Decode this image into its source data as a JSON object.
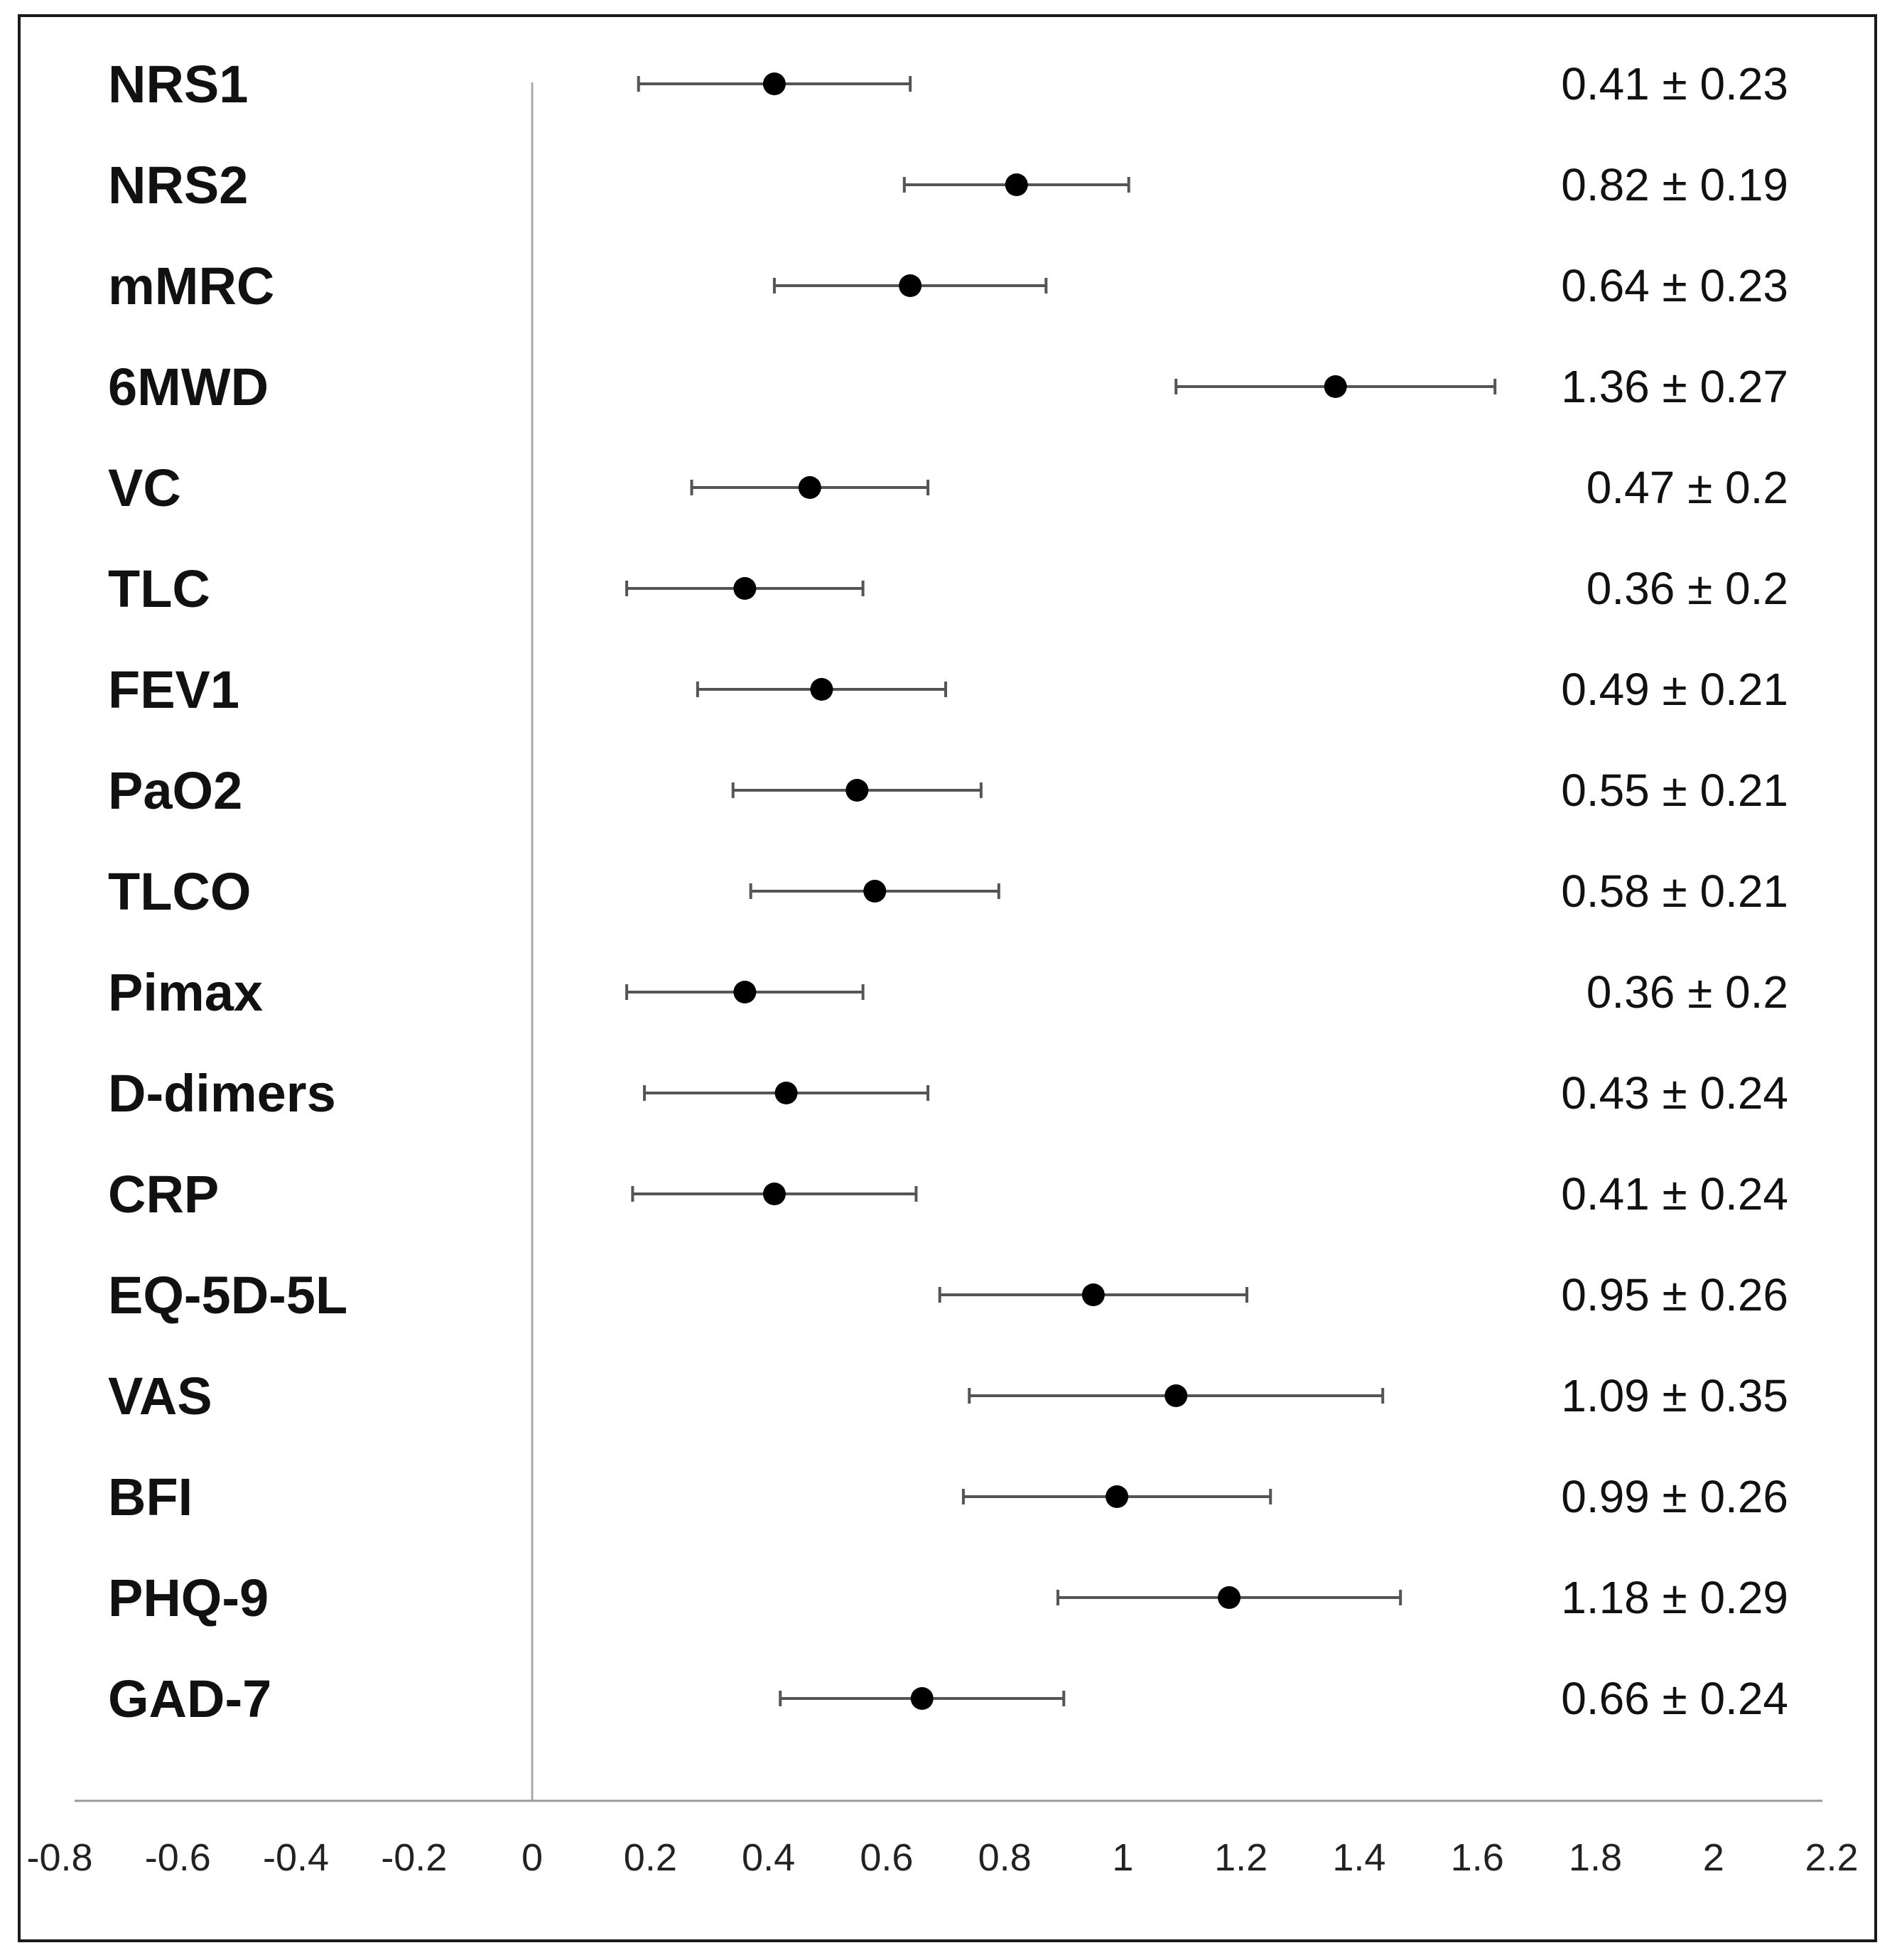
{
  "chart_data": {
    "type": "forest",
    "xlim": [
      -0.8,
      2.2
    ],
    "xticks": [
      "-0.8",
      "-0.6",
      "-0.4",
      "-0.2",
      "0",
      "0.2",
      "0.4",
      "0.6",
      "0.8",
      "1",
      "1.2",
      "1.4",
      "1.6",
      "1.8",
      "2",
      "2.2"
    ],
    "reference_line": 0,
    "colors": {
      "point": "#000000",
      "whisker": "#555555",
      "axis": "#999999",
      "reference": "#aaaaaa"
    },
    "rows": [
      {
        "label": "NRS1",
        "mean": 0.41,
        "ci": 0.23,
        "text": "0.41 ± 0.23"
      },
      {
        "label": "NRS2",
        "mean": 0.82,
        "ci": 0.19,
        "text": "0.82 ± 0.19"
      },
      {
        "label": "mMRC",
        "mean": 0.64,
        "ci": 0.23,
        "text": "0.64 ± 0.23"
      },
      {
        "label": "6MWD",
        "mean": 1.36,
        "ci": 0.27,
        "text": "1.36 ± 0.27"
      },
      {
        "label": "VC",
        "mean": 0.47,
        "ci": 0.2,
        "text": "0.47 ± 0.2"
      },
      {
        "label": "TLC",
        "mean": 0.36,
        "ci": 0.2,
        "text": "0.36 ± 0.2"
      },
      {
        "label": "FEV1",
        "mean": 0.49,
        "ci": 0.21,
        "text": "0.49 ± 0.21"
      },
      {
        "label": "PaO2",
        "mean": 0.55,
        "ci": 0.21,
        "text": "0.55 ± 0.21"
      },
      {
        "label": "TLCO",
        "mean": 0.58,
        "ci": 0.21,
        "text": "0.58 ± 0.21"
      },
      {
        "label": "Pimax",
        "mean": 0.36,
        "ci": 0.2,
        "text": "0.36 ± 0.2"
      },
      {
        "label": "D-dimers",
        "mean": 0.43,
        "ci": 0.24,
        "text": "0.43 ± 0.24"
      },
      {
        "label": "CRP",
        "mean": 0.41,
        "ci": 0.24,
        "text": "0.41 ± 0.24"
      },
      {
        "label": "EQ-5D-5L",
        "mean": 0.95,
        "ci": 0.26,
        "text": "0.95 ± 0.26"
      },
      {
        "label": "VAS",
        "mean": 1.09,
        "ci": 0.35,
        "text": "1.09 ± 0.35"
      },
      {
        "label": "BFI",
        "mean": 0.99,
        "ci": 0.26,
        "text": "0.99 ± 0.26"
      },
      {
        "label": "PHQ-9",
        "mean": 1.18,
        "ci": 0.29,
        "text": "1.18 ± 0.29"
      },
      {
        "label": "GAD-7",
        "mean": 0.66,
        "ci": 0.24,
        "text": "0.66 ± 0.24"
      }
    ]
  }
}
